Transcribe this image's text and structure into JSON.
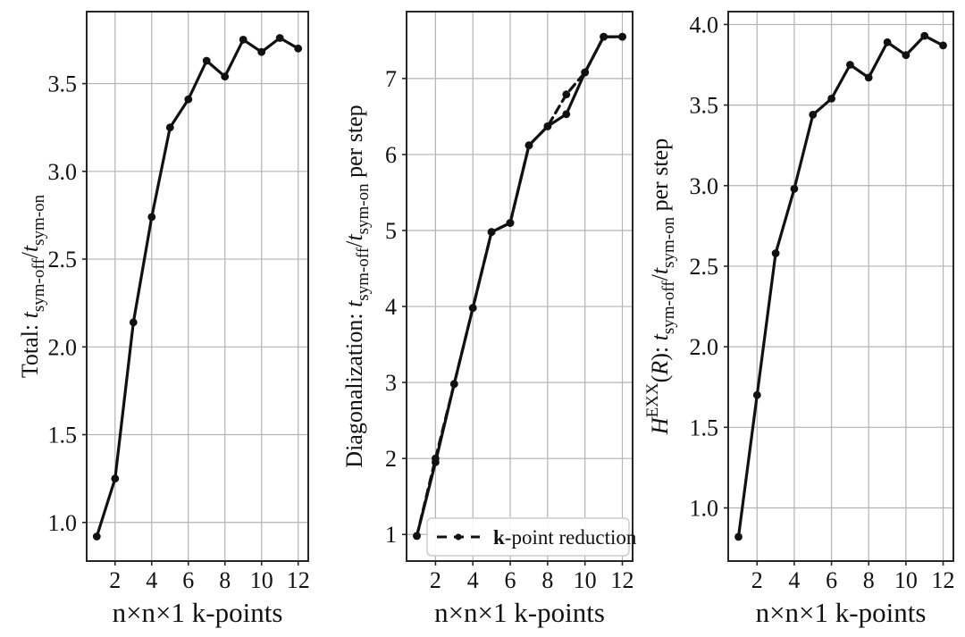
{
  "figure": {
    "background": "#ffffff",
    "line_color": "#111111",
    "grid_color": "#b3b3b3",
    "spine_color": "#262626",
    "legend_border_color": "#cccccc"
  },
  "chart_data": [
    {
      "type": "line",
      "panel": "total-speedup",
      "xlabel": "n×n×1 k-points",
      "ylabel_segments": [
        {
          "t": "Total: "
        },
        {
          "t": "t",
          "italic": true
        },
        {
          "t": "sym-off",
          "script": "sub"
        },
        {
          "t": "/"
        },
        {
          "t": "t",
          "italic": true
        },
        {
          "t": "sym-on",
          "script": "sub"
        }
      ],
      "x": [
        1,
        2,
        3,
        4,
        5,
        6,
        7,
        8,
        9,
        10,
        11,
        12
      ],
      "series": [
        {
          "name": "",
          "dash": false,
          "values": [
            0.92,
            1.25,
            2.14,
            2.74,
            3.25,
            3.41,
            3.63,
            3.54,
            3.75,
            3.68,
            3.76,
            3.7
          ]
        }
      ],
      "xlim": [
        0.45,
        12.55
      ],
      "ylim": [
        0.78,
        3.91
      ],
      "xticks": {
        "values": [
          2,
          4,
          6,
          8,
          10,
          12
        ],
        "labels": [
          "2",
          "4",
          "6",
          "8",
          "10",
          "12"
        ]
      },
      "yticks": {
        "values": [
          1.0,
          1.5,
          2.0,
          2.5,
          3.0,
          3.5
        ],
        "labels": [
          "1.0",
          "1.5",
          "2.0",
          "2.5",
          "3.0",
          "3.5"
        ]
      },
      "grid": true
    },
    {
      "type": "line",
      "panel": "diagonalization-speedup",
      "xlabel": "n×n×1 k-points",
      "ylabel_segments": [
        {
          "t": "Diagonalization: "
        },
        {
          "t": "t",
          "italic": true
        },
        {
          "t": "sym-off",
          "script": "sub"
        },
        {
          "t": "/"
        },
        {
          "t": "t",
          "italic": true
        },
        {
          "t": "sym-on",
          "script": "sub"
        },
        {
          "t": " per step"
        }
      ],
      "x": [
        1,
        2,
        3,
        4,
        5,
        6,
        7,
        8,
        9,
        10,
        11,
        12
      ],
      "series": [
        {
          "name": "",
          "dash": false,
          "values": [
            0.98,
            1.95,
            2.98,
            3.98,
            4.98,
            5.1,
            6.12,
            6.37,
            6.53,
            7.08,
            7.55,
            7.55
          ]
        },
        {
          "name": "k-point reduction",
          "dash": true,
          "values": [
            0.98,
            2.0,
            2.98,
            3.98,
            4.98,
            5.1,
            6.12,
            6.37,
            6.79,
            7.08,
            7.55,
            7.55
          ]
        }
      ],
      "xlim": [
        0.45,
        12.55
      ],
      "ylim": [
        0.65,
        7.88
      ],
      "xticks": {
        "values": [
          2,
          4,
          6,
          8,
          10,
          12
        ],
        "labels": [
          "2",
          "4",
          "6",
          "8",
          "10",
          "12"
        ]
      },
      "yticks": {
        "values": [
          1,
          2,
          3,
          4,
          5,
          6,
          7
        ],
        "labels": [
          "1",
          "2",
          "3",
          "4",
          "5",
          "6",
          "7"
        ]
      },
      "grid": true,
      "legend": {
        "label_segments": [
          {
            "t": "k",
            "bold": true
          },
          {
            "t": "-point reduction"
          }
        ]
      }
    },
    {
      "type": "line",
      "panel": "hexx-speedup",
      "xlabel": "n×n×1 k-points",
      "ylabel_segments": [
        {
          "t": "H",
          "italic": true
        },
        {
          "t": "EXX",
          "script": "sup"
        },
        {
          "t": "("
        },
        {
          "t": "R",
          "italic": true
        },
        {
          "t": "): "
        },
        {
          "t": "t",
          "italic": true
        },
        {
          "t": "sym-off",
          "script": "sub"
        },
        {
          "t": "/"
        },
        {
          "t": "t",
          "italic": true
        },
        {
          "t": "sym-on",
          "script": "sub"
        },
        {
          "t": " per step"
        }
      ],
      "x": [
        1,
        2,
        3,
        4,
        5,
        6,
        7,
        8,
        9,
        10,
        11,
        12
      ],
      "series": [
        {
          "name": "",
          "dash": false,
          "values": [
            0.82,
            1.7,
            2.58,
            2.98,
            3.44,
            3.54,
            3.75,
            3.67,
            3.89,
            3.81,
            3.93,
            3.87
          ]
        }
      ],
      "xlim": [
        0.45,
        12.55
      ],
      "ylim": [
        0.67,
        4.08
      ],
      "xticks": {
        "values": [
          2,
          4,
          6,
          8,
          10,
          12
        ],
        "labels": [
          "2",
          "4",
          "6",
          "8",
          "10",
          "12"
        ]
      },
      "yticks": {
        "values": [
          1.0,
          1.5,
          2.0,
          2.5,
          3.0,
          3.5,
          4.0
        ],
        "labels": [
          "1.0",
          "1.5",
          "2.0",
          "2.5",
          "3.0",
          "3.5",
          "4.0"
        ]
      },
      "grid": true
    }
  ]
}
